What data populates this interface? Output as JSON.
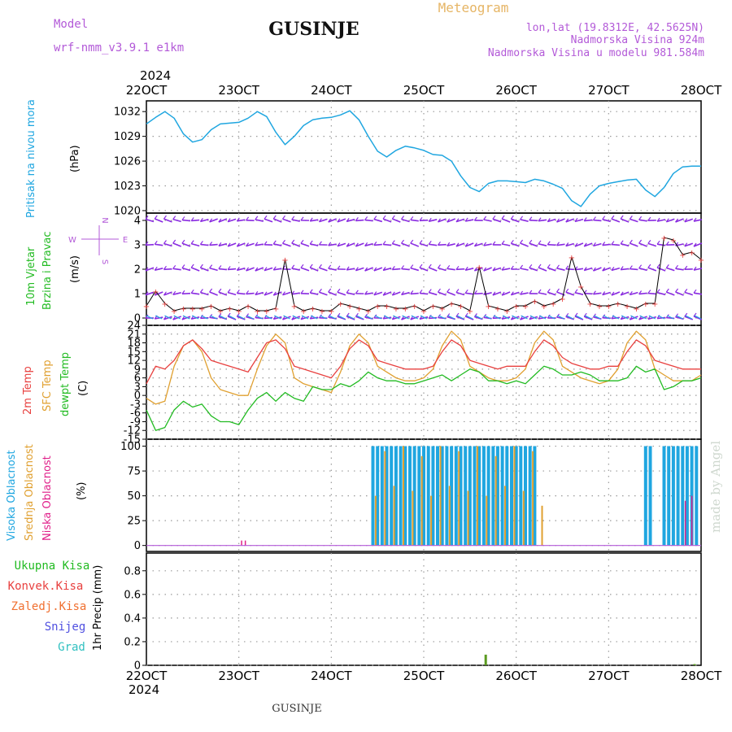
{
  "header": {
    "model_label": "Model",
    "model_name": "wrf-nmm_v3.9.1 e1km",
    "station": "GUSINJE",
    "product": "Meteogram",
    "lonlat": "lon,lat (19.8312E, 42.5625N)",
    "elevation": "Nadmorska Visina 924m",
    "model_elevation": "Nadmorska Visina u modelu 981.584m",
    "year": "2024",
    "footer_station": "GUSINJE",
    "credit": "made by Angel"
  },
  "colors": {
    "pressure": "#1fa6e0",
    "wind_barb": "#8a2be2",
    "wind_speed": "#000000",
    "temp_2m": "#e8403f",
    "temp_sfc": "#e0a030",
    "dewpoint": "#22bb22",
    "cloud_high": "#1fa6e0",
    "cloud_mid": "#e0a030",
    "cloud_low": "#e0208a",
    "precip_total": "#22bb22",
    "precip_conv": "#e8403f",
    "precip_frz": "#f07030",
    "snow": "#5050e0",
    "hail": "#30c0c0",
    "credit": "#cfd8cf"
  },
  "time_axis": {
    "labels": [
      "22OCT",
      "23OCT",
      "24OCT",
      "25OCT",
      "26OCT",
      "27OCT",
      "28OCT"
    ],
    "days": [
      0,
      1,
      2,
      3,
      4,
      5,
      6
    ]
  },
  "panels": {
    "pressure": {
      "ylabel": "Pritisak na nivou mora",
      "unit": "(hPa)",
      "ticks": [
        "1020",
        "1023",
        "1026",
        "1029",
        "1032"
      ]
    },
    "wind": {
      "ylabel1": "10m Vjetar",
      "ylabel2": "Brzina i Pravac",
      "unit": "(m/s)",
      "ticks": [
        "0",
        "1",
        "2",
        "3",
        "4"
      ],
      "compass": {
        "n": "N",
        "s": "S",
        "e": "E",
        "w": "W"
      }
    },
    "temp": {
      "ylabel1": "2m Temp",
      "ylabel2": "SFC Temp",
      "ylabel3": "dewpt Temp",
      "unit": "(C)",
      "ticks": [
        "-15",
        "-12",
        "-9",
        "-6",
        "-3",
        "0",
        "3",
        "6",
        "9",
        "12",
        "15",
        "18",
        "21",
        "24"
      ]
    },
    "cloud": {
      "ylabel1": "Visoka Oblacnost",
      "ylabel2": "Srednja Oblacnost",
      "ylabel3": "Niska Oblacnost",
      "unit": "(%)",
      "ticks": [
        "0",
        "25",
        "50",
        "75",
        "100"
      ]
    },
    "precip": {
      "legend": [
        "Ukupna Kisa",
        "Konvek.Kisa",
        "Zaledj.Kisa",
        "Snijeg",
        "Grad"
      ],
      "unit": "1hr Precip (mm)",
      "ticks": [
        "0",
        "0.2",
        "0.4",
        "0.6",
        "0.8"
      ]
    }
  },
  "chart_data": [
    {
      "type": "line",
      "xlabel": "",
      "ylabel": "Pritisak na nivou mora (hPa)",
      "xlim": [
        0,
        6
      ],
      "ylim": [
        1019.7,
        1033.3
      ],
      "series": [
        {
          "x": [
            0,
            0.1,
            0.2,
            0.3,
            0.4,
            0.5,
            0.6,
            0.7,
            0.8,
            0.9,
            1.0,
            1.1,
            1.2,
            1.3,
            1.4,
            1.5,
            1.6,
            1.7,
            1.8,
            1.9,
            2.0,
            2.1,
            2.2,
            2.3,
            2.4,
            2.5,
            2.6,
            2.7,
            2.8,
            2.9,
            3.0,
            3.1,
            3.2,
            3.3,
            3.4,
            3.5,
            3.6,
            3.7,
            3.8,
            3.9,
            4.0,
            4.1,
            4.2,
            4.3,
            4.4,
            4.5,
            4.6,
            4.7,
            4.8,
            4.9,
            5.0,
            5.1,
            5.2,
            5.3,
            5.4,
            5.5,
            5.6,
            5.7,
            5.8,
            5.9,
            6.0
          ],
          "values": [
            1030.5,
            1031.3,
            1032.0,
            1031.2,
            1029.3,
            1028.3,
            1028.6,
            1029.8,
            1030.5,
            1030.6,
            1030.7,
            1031.2,
            1032.0,
            1031.4,
            1029.5,
            1028.0,
            1029.0,
            1030.3,
            1031.0,
            1031.2,
            1031.3,
            1031.6,
            1032.1,
            1031.0,
            1029.0,
            1027.2,
            1026.5,
            1027.3,
            1027.8,
            1027.6,
            1027.3,
            1026.8,
            1026.7,
            1026.0,
            1024.2,
            1022.8,
            1022.3,
            1023.3,
            1023.6,
            1023.6,
            1023.5,
            1023.4,
            1023.8,
            1023.6,
            1023.2,
            1022.7,
            1021.2,
            1020.5,
            1022.0,
            1023.0,
            1023.3,
            1023.5,
            1023.7,
            1023.8,
            1022.5,
            1021.7,
            1022.8,
            1024.5,
            1025.3,
            1025.4,
            1025.4
          ]
        }
      ]
    },
    {
      "type": "line",
      "xlabel": "",
      "ylabel": "10m Vjetar Brzina i Pravac (m/s)",
      "xlim": [
        0,
        6
      ],
      "ylim": [
        -0.3,
        4.3
      ],
      "series": [
        {
          "x": [
            0,
            0.1,
            0.2,
            0.3,
            0.4,
            0.5,
            0.6,
            0.7,
            0.8,
            0.9,
            1.0,
            1.1,
            1.2,
            1.3,
            1.4,
            1.5,
            1.6,
            1.7,
            1.8,
            1.9,
            2.0,
            2.1,
            2.2,
            2.3,
            2.4,
            2.5,
            2.6,
            2.7,
            2.8,
            2.9,
            3.0,
            3.1,
            3.2,
            3.3,
            3.4,
            3.5,
            3.6,
            3.7,
            3.8,
            3.9,
            4.0,
            4.1,
            4.2,
            4.3,
            4.4,
            4.5,
            4.6,
            4.7,
            4.8,
            4.9,
            5.0,
            5.1,
            5.2,
            5.3,
            5.4,
            5.5,
            5.6,
            5.7,
            5.8,
            5.9,
            6.0
          ],
          "values": [
            0.5,
            1.1,
            0.6,
            0.3,
            0.4,
            0.4,
            0.4,
            0.5,
            0.3,
            0.4,
            0.3,
            0.5,
            0.3,
            0.3,
            0.4,
            2.4,
            0.5,
            0.3,
            0.4,
            0.3,
            0.3,
            0.6,
            0.5,
            0.4,
            0.3,
            0.5,
            0.5,
            0.4,
            0.4,
            0.5,
            0.3,
            0.5,
            0.4,
            0.6,
            0.5,
            0.3,
            2.1,
            0.5,
            0.4,
            0.3,
            0.5,
            0.5,
            0.7,
            0.5,
            0.6,
            0.8,
            2.5,
            1.3,
            0.6,
            0.5,
            0.5,
            0.6,
            0.5,
            0.4,
            0.6,
            0.6,
            3.3,
            3.2,
            2.6,
            2.7,
            2.4
          ]
        }
      ]
    },
    {
      "type": "line",
      "xlabel": "",
      "ylabel": "Temp (C)",
      "xlim": [
        0,
        6
      ],
      "ylim": [
        -15,
        24
      ],
      "series": [
        {
          "x": [
            0,
            0.1,
            0.2,
            0.3,
            0.4,
            0.5,
            0.6,
            0.7,
            0.8,
            0.9,
            1.0,
            1.1,
            1.2,
            1.3,
            1.4,
            1.5,
            1.6,
            1.7,
            1.8,
            1.9,
            2.0,
            2.1,
            2.2,
            2.3,
            2.4,
            2.5,
            2.6,
            2.7,
            2.8,
            2.9,
            3.0,
            3.1,
            3.2,
            3.3,
            3.4,
            3.5,
            3.6,
            3.7,
            3.8,
            3.9,
            4.0,
            4.1,
            4.2,
            4.3,
            4.4,
            4.5,
            4.6,
            4.7,
            4.8,
            4.9,
            5.0,
            5.1,
            5.2,
            5.3,
            5.4,
            5.5,
            5.6,
            5.7,
            5.8,
            5.9,
            6.0
          ],
          "values": [
            4,
            10,
            9,
            12,
            17,
            19,
            16,
            12,
            11,
            10,
            9,
            8,
            13,
            18,
            19,
            16,
            10,
            9,
            8,
            7,
            6,
            10,
            16,
            19,
            17,
            12,
            11,
            10,
            9,
            9,
            9,
            10,
            15,
            19,
            17,
            12,
            11,
            10,
            9,
            10,
            10,
            10,
            15,
            19,
            17,
            13,
            11,
            10,
            9,
            9,
            10,
            10,
            15,
            19,
            17,
            12,
            11,
            10,
            9,
            9,
            9
          ]
        },
        {
          "x": [
            0,
            0.1,
            0.2,
            0.3,
            0.4,
            0.5,
            0.6,
            0.7,
            0.8,
            0.9,
            1.0,
            1.1,
            1.2,
            1.3,
            1.4,
            1.5,
            1.6,
            1.7,
            1.8,
            1.9,
            2.0,
            2.1,
            2.2,
            2.3,
            2.4,
            2.5,
            2.6,
            2.7,
            2.8,
            2.9,
            3.0,
            3.1,
            3.2,
            3.3,
            3.4,
            3.5,
            3.6,
            3.7,
            3.8,
            3.9,
            4.0,
            4.1,
            4.2,
            4.3,
            4.4,
            4.5,
            4.6,
            4.7,
            4.8,
            4.9,
            5.0,
            5.1,
            5.2,
            5.3,
            5.4,
            5.5,
            5.6,
            5.7,
            5.8,
            5.9,
            6.0
          ],
          "values": [
            -1,
            -3,
            -2,
            10,
            17,
            19,
            15,
            6,
            2,
            1,
            0,
            0,
            9,
            17,
            21,
            18,
            6,
            4,
            3,
            2,
            1,
            8,
            17,
            21,
            18,
            10,
            8,
            6,
            5,
            5,
            6,
            9,
            17,
            22,
            19,
            10,
            8,
            6,
            5,
            5,
            6,
            9,
            18,
            22,
            19,
            10,
            8,
            6,
            5,
            4,
            5,
            9,
            18,
            22,
            19,
            9,
            7,
            5,
            5,
            5,
            7
          ]
        },
        {
          "x": [
            0,
            0.1,
            0.2,
            0.3,
            0.4,
            0.5,
            0.6,
            0.7,
            0.8,
            0.9,
            1.0,
            1.1,
            1.2,
            1.3,
            1.4,
            1.5,
            1.6,
            1.7,
            1.8,
            1.9,
            2.0,
            2.1,
            2.2,
            2.3,
            2.4,
            2.5,
            2.6,
            2.7,
            2.8,
            2.9,
            3.0,
            3.1,
            3.2,
            3.3,
            3.4,
            3.5,
            3.6,
            3.7,
            3.8,
            3.9,
            4.0,
            4.1,
            4.2,
            4.3,
            4.4,
            4.5,
            4.6,
            4.7,
            4.8,
            4.9,
            5.0,
            5.1,
            5.2,
            5.3,
            5.4,
            5.5,
            5.6,
            5.7,
            5.8,
            5.9,
            6.0
          ],
          "values": [
            -5,
            -12,
            -11,
            -5,
            -2,
            -4,
            -3,
            -7,
            -9,
            -9,
            -10,
            -5,
            -1,
            1,
            -2,
            1,
            -1,
            -2,
            3,
            2,
            2,
            4,
            3,
            5,
            8,
            6,
            5,
            5,
            4,
            4,
            5,
            6,
            7,
            5,
            7,
            9,
            8,
            5,
            5,
            4,
            5,
            4,
            7,
            10,
            9,
            7,
            7,
            8,
            7,
            5,
            5,
            5,
            6,
            10,
            8,
            9,
            2,
            3,
            5,
            5,
            6
          ]
        }
      ]
    },
    {
      "type": "bar",
      "xlabel": "",
      "ylabel": "Oblacnost (%)",
      "xlim": [
        0,
        6
      ],
      "ylim": [
        -6,
        107
      ],
      "series": [
        {
          "x": [
            2.45,
            2.5,
            2.55,
            2.6,
            2.65,
            2.7,
            2.75,
            2.8,
            2.85,
            2.9,
            2.95,
            3.0,
            3.05,
            3.1,
            3.15,
            3.2,
            3.25,
            3.3,
            3.35,
            3.4,
            3.45,
            3.5,
            3.55,
            3.6,
            3.65,
            3.7,
            3.75,
            3.8,
            3.85,
            3.9,
            3.95,
            4.0,
            4.05,
            4.1,
            4.15,
            4.2,
            5.4,
            5.45,
            5.6,
            5.65,
            5.7,
            5.75,
            5.8,
            5.85,
            5.9,
            5.95
          ],
          "values": [
            100,
            100,
            100,
            100,
            100,
            100,
            100,
            100,
            100,
            100,
            100,
            100,
            100,
            100,
            100,
            100,
            100,
            100,
            100,
            100,
            100,
            100,
            100,
            100,
            100,
            100,
            100,
            100,
            100,
            100,
            100,
            100,
            100,
            100,
            100,
            100,
            100,
            100,
            100,
            100,
            100,
            100,
            100,
            100,
            100,
            100
          ]
        },
        {
          "x": [
            2.48,
            2.58,
            2.68,
            2.78,
            2.88,
            2.98,
            3.08,
            3.18,
            3.28,
            3.38,
            3.48,
            3.58,
            3.68,
            3.78,
            3.88,
            3.98,
            4.08,
            4.18,
            4.28
          ],
          "values": [
            50,
            95,
            60,
            100,
            55,
            90,
            50,
            100,
            60,
            95,
            55,
            100,
            50,
            90,
            60,
            100,
            55,
            95,
            40
          ]
        },
        {
          "x": [
            1.03,
            1.07,
            5.83,
            5.9
          ],
          "values": [
            5,
            5,
            45,
            50
          ]
        }
      ]
    },
    {
      "type": "bar",
      "xlabel": "",
      "ylabel": "1hr Precip (mm)",
      "xlim": [
        0,
        6
      ],
      "ylim": [
        0,
        0.95
      ],
      "series": [
        {
          "x": [
            3.67
          ],
          "values": [
            0.09
          ]
        },
        {
          "x": [
            5.93
          ],
          "values": [
            0.01
          ]
        }
      ]
    }
  ]
}
